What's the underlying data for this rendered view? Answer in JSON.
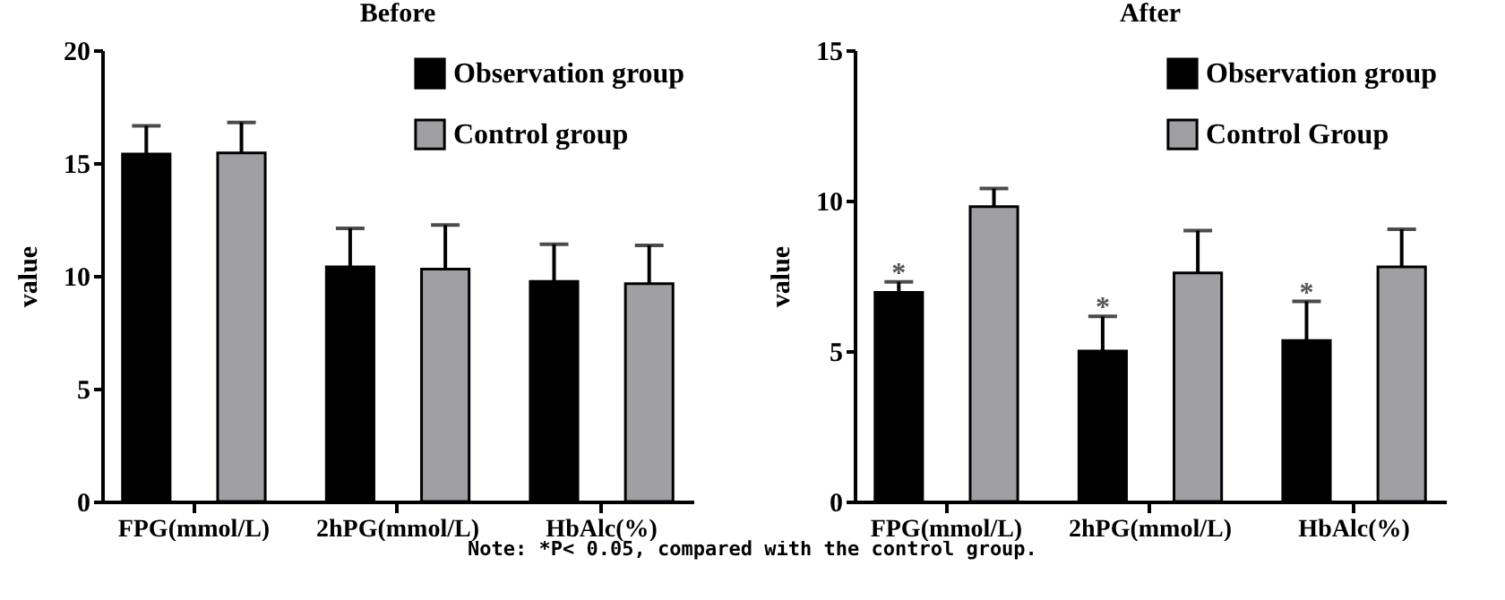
{
  "chart_data": [
    {
      "type": "bar",
      "title": "Before",
      "ylabel": "value",
      "categories": [
        "FPG(mmol/L)",
        "2hPG(mmol/L)",
        "HbAlc(%)"
      ],
      "series": [
        {
          "name": "Observation group",
          "color": "#000000",
          "values": [
            15.4,
            10.4,
            9.75
          ],
          "errors": [
            1.25,
            1.7,
            1.65
          ]
        },
        {
          "name": "Control group",
          "color": "#a0a0a4",
          "values": [
            15.45,
            10.3,
            9.65
          ],
          "errors": [
            1.35,
            1.95,
            1.7
          ]
        }
      ],
      "ylim": [
        0,
        20
      ],
      "yticks": [
        0,
        5,
        10,
        15,
        20
      ],
      "grid": false,
      "legend": "top right"
    },
    {
      "type": "bar",
      "title": "After",
      "ylabel": "value",
      "categories": [
        "FPG(mmol/L)",
        "2hPG(mmol/L)",
        "HbAlc(%)"
      ],
      "series": [
        {
          "name": "Observation group",
          "color": "#000000",
          "values": [
            6.95,
            5.0,
            5.35
          ],
          "errors": [
            0.35,
            1.15,
            1.3
          ],
          "value_labels": [
            "*",
            "*",
            "*"
          ]
        },
        {
          "name": "Control Group",
          "color": "#a0a0a4",
          "values": [
            9.8,
            7.6,
            7.8
          ],
          "errors": [
            0.6,
            1.4,
            1.25
          ]
        }
      ],
      "ylim": [
        0,
        15
      ],
      "yticks": [
        0,
        5,
        10,
        15
      ],
      "grid": false,
      "legend": "top right",
      "annotations": [
        "Note: *P< 0.05, compared with the control group."
      ]
    }
  ]
}
